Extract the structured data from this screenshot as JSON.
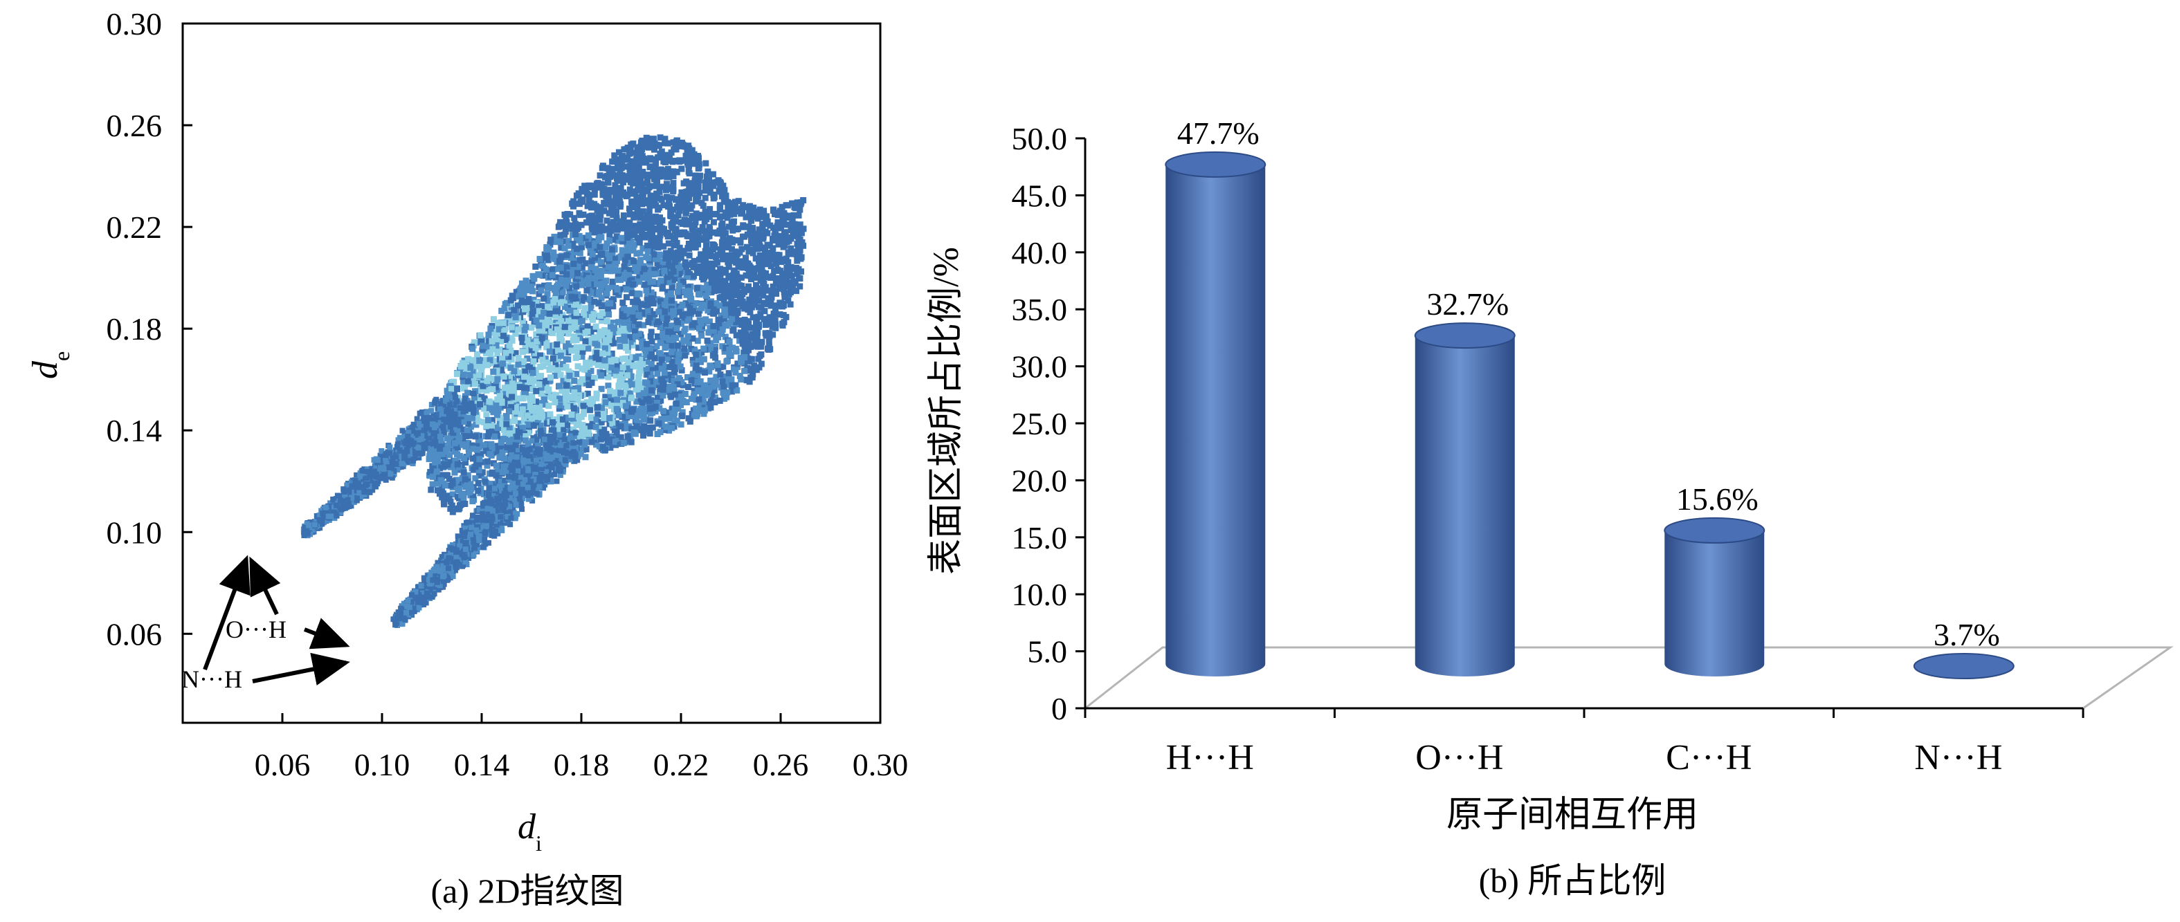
{
  "chart_data": [
    {
      "type": "scatter",
      "panel": "a",
      "caption": "(a) 2D指纹图",
      "xlabel_main": "d",
      "xlabel_sub": "i",
      "ylabel_main": "d",
      "ylabel_sub": "e",
      "xlim": [
        0.02,
        0.3
      ],
      "ylim": [
        0.025,
        0.3
      ],
      "x_ticks": [
        "0.06",
        "0.10",
        "0.14",
        "0.18",
        "0.22",
        "0.26",
        "0.30"
      ],
      "y_ticks": [
        "0.06",
        "0.10",
        "0.14",
        "0.18",
        "0.22",
        "0.26",
        "0.30"
      ],
      "annotations": [
        {
          "label": "O···H",
          "targets": [
            [
              0.066,
              0.101
            ],
            [
              0.104,
              0.066
            ]
          ]
        },
        {
          "label": "N···H",
          "targets": [
            [
              0.064,
              0.1
            ],
            [
              0.102,
              0.063
            ]
          ]
        }
      ],
      "colors": {
        "sparse": "#3a6fb0",
        "medium": "#4f8dc6",
        "dense": "#8ecfe3"
      }
    },
    {
      "type": "bar",
      "panel": "b",
      "caption": "(b) 所占比例",
      "xlabel": "原子间相互作用",
      "ylabel": "表面区域所占比例/%",
      "categories": [
        "H···H",
        "O···H",
        "C···H",
        "N···H"
      ],
      "values": [
        47.7,
        32.7,
        15.6,
        3.7
      ],
      "data_labels": [
        "47.7%",
        "32.7%",
        "15.6%",
        "3.7%"
      ],
      "y_ticks": [
        "0",
        "5.0",
        "10.0",
        "15.0",
        "20.0",
        "25.0",
        "30.0",
        "35.0",
        "40.0",
        "45.0",
        "50.0"
      ],
      "ylim": [
        0,
        50
      ],
      "colors": {
        "bar": "#4a6fb4",
        "bar_dark": "#2c4a86",
        "bar_light": "#6d93d0"
      }
    }
  ]
}
